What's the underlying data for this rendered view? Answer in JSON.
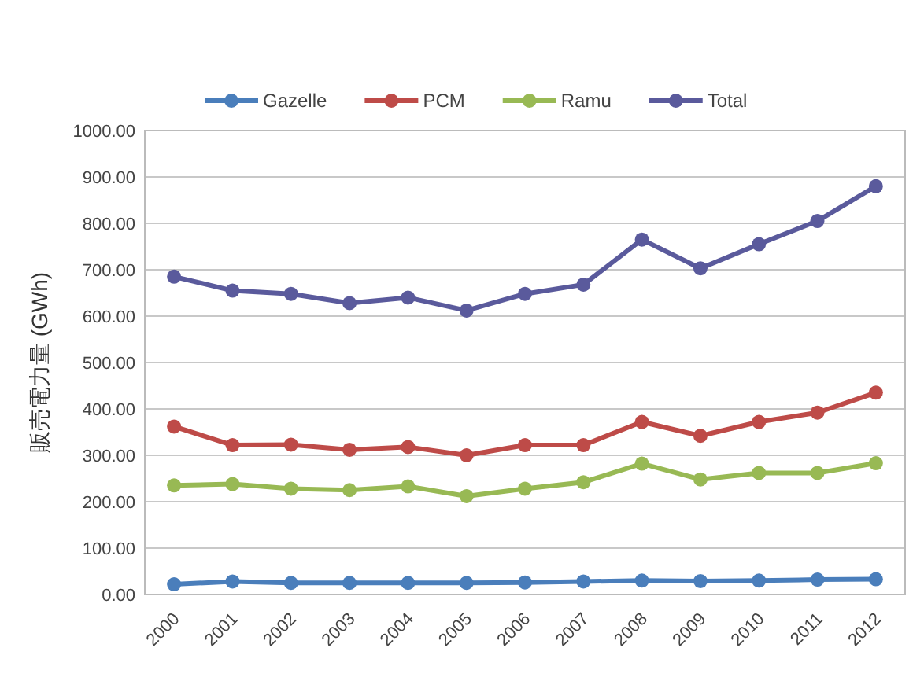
{
  "chart_data": {
    "type": "line",
    "ylabel": "販売電力量 (GWh)",
    "categories": [
      "2000",
      "2001",
      "2002",
      "2003",
      "2004",
      "2005",
      "2006",
      "2007",
      "2008",
      "2009",
      "2010",
      "2011",
      "2012"
    ],
    "series": [
      {
        "name": "Gazelle",
        "color": "#4a7ebb",
        "values": [
          22,
          28,
          25,
          25,
          25,
          25,
          26,
          28,
          30,
          29,
          30,
          32,
          33
        ]
      },
      {
        "name": "PCM",
        "color": "#be4b48",
        "values": [
          362,
          322,
          323,
          312,
          318,
          300,
          322,
          322,
          372,
          342,
          372,
          392,
          435
        ]
      },
      {
        "name": "Ramu",
        "color": "#98b954",
        "values": [
          235,
          238,
          228,
          225,
          233,
          212,
          228,
          242,
          282,
          248,
          262,
          262,
          283
        ]
      },
      {
        "name": "Total",
        "color": "#5a5a9c",
        "values": [
          685,
          655,
          648,
          628,
          640,
          612,
          648,
          668,
          765,
          703,
          755,
          805,
          880
        ]
      }
    ],
    "ylim": [
      0,
      1000
    ],
    "yticks": [
      {
        "value": 0,
        "label": "0.00"
      },
      {
        "value": 100,
        "label": "100.00"
      },
      {
        "value": 200,
        "label": "200.00"
      },
      {
        "value": 300,
        "label": "300.00"
      },
      {
        "value": 400,
        "label": "400.00"
      },
      {
        "value": 500,
        "label": "500.00"
      },
      {
        "value": 600,
        "label": "600.00"
      },
      {
        "value": 700,
        "label": "700.00"
      },
      {
        "value": 800,
        "label": "800.00"
      },
      {
        "value": 900,
        "label": "900.00"
      },
      {
        "value": 1000,
        "label": "1000.00"
      }
    ],
    "grid": "y",
    "legend": "top",
    "marker": "circle",
    "line_style": "solid"
  }
}
